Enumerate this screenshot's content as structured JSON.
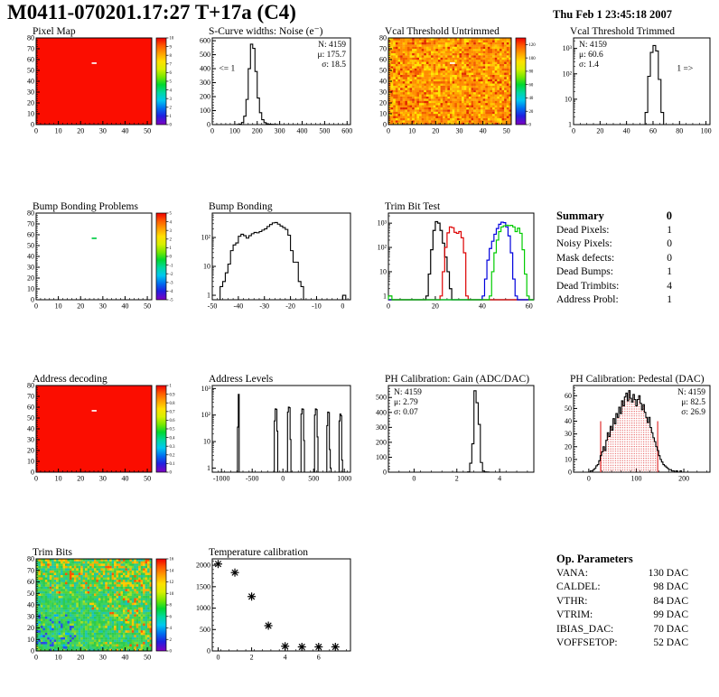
{
  "header": {
    "title": "M0411-070201.17:27 T+17a (C4)",
    "date": "Thu Feb  1 23:45:18 2007"
  },
  "summary": {
    "title": "Summary",
    "total": "0",
    "rows": [
      {
        "label": "Dead Pixels:",
        "value": "1"
      },
      {
        "label": "Noisy Pixels:",
        "value": "0"
      },
      {
        "label": "Mask defects:",
        "value": "0"
      },
      {
        "label": "Dead Bumps:",
        "value": "1"
      },
      {
        "label": "Dead Trimbits:",
        "value": "4"
      },
      {
        "label": "Address Probl:",
        "value": "1"
      }
    ]
  },
  "op_parameters": {
    "title": "Op. Parameters",
    "rows": [
      {
        "label": "VANA:",
        "value": "130 DAC"
      },
      {
        "label": "CALDEL:",
        "value": "98 DAC"
      },
      {
        "label": "VTHR:",
        "value": "84 DAC"
      },
      {
        "label": "VTRIM:",
        "value": "99 DAC"
      },
      {
        "label": "IBIAS_DAC:",
        "value": "70 DAC"
      },
      {
        "label": "VOFFSETOP:",
        "value": "52 DAC"
      }
    ]
  },
  "chart_data": [
    {
      "id": "pixel_map",
      "title": "Pixel Map",
      "type": "heatmap",
      "pattern": "uniform",
      "base_color": "#fb0d00",
      "xrange": [
        0,
        52
      ],
      "yrange": [
        0,
        80
      ],
      "xticks": [
        0,
        10,
        20,
        30,
        40,
        50
      ],
      "yticks": [
        0,
        10,
        20,
        30,
        40,
        50,
        60,
        70,
        80
      ],
      "xminor": 2,
      "yminor": 2,
      "defect": {
        "x": 25,
        "y": 56,
        "color": "#ffffff"
      },
      "colorbar": {
        "range": [
          0,
          10
        ],
        "labels": [
          "10",
          "9",
          "8",
          "7",
          "6",
          "5",
          "4",
          "3",
          "2",
          "1",
          "0"
        ]
      }
    },
    {
      "id": "scurve",
      "title": "S-Curve widths: Noise (e⁻)",
      "type": "hist",
      "color": "#000000",
      "xrange": [
        0,
        615
      ],
      "yrange": [
        0,
        620
      ],
      "xticks": [
        0,
        100,
        200,
        300,
        400,
        500,
        600
      ],
      "yticks": [
        0,
        100,
        200,
        300,
        400,
        500,
        600
      ],
      "xminor": 20,
      "yminor": 20,
      "segments": [
        {
          "x0": 110,
          "w": 10,
          "counts": [
            1,
            3,
            15,
            60,
            180,
            400,
            575,
            545,
            380,
            190,
            85,
            35,
            14,
            6,
            3,
            2,
            1,
            1
          ]
        }
      ],
      "stats": {
        "pos": "tr",
        "lines": [
          {
            "t": "N: 4159"
          },
          {
            "t": "μ: 175.7"
          },
          {
            "t": "σ: 18.5"
          }
        ]
      },
      "annotations": [
        {
          "text": "<= 1",
          "x": 30,
          "y": 385
        }
      ]
    },
    {
      "id": "vcal_untrimmed",
      "title": "Vcal Threshold Untrimmed",
      "type": "heatmap",
      "pattern": "vcal",
      "seed": 11,
      "xrange": [
        0,
        52
      ],
      "yrange": [
        0,
        80
      ],
      "xticks": [
        0,
        10,
        20,
        30,
        40,
        50
      ],
      "yticks": [
        0,
        10,
        20,
        30,
        40,
        50,
        60,
        70,
        80
      ],
      "xminor": 2,
      "yminor": 2,
      "defect": {
        "x": 26,
        "y": 56,
        "color": "#ffffff"
      },
      "colorbar": {
        "range": [
          0,
          130
        ],
        "labels": [
          "120",
          "100",
          "80",
          "60",
          "40",
          "20",
          "0"
        ]
      }
    },
    {
      "id": "vcal_trimmed",
      "title": "Vcal Threshold Trimmed",
      "type": "hist",
      "yscale": "log",
      "color": "#000000",
      "xrange": [
        0,
        103
      ],
      "yrange": [
        1,
        2600
      ],
      "xticks": [
        0,
        20,
        40,
        60,
        80,
        100
      ],
      "xminor": 5,
      "segments": [
        {
          "x0": 54,
          "w": 2,
          "counts": [
            3,
            80,
            700,
            1300,
            800,
            60,
            3
          ]
        }
      ],
      "stats": {
        "pos": "tl",
        "lines": [
          {
            "t": "N: 4159"
          },
          {
            "t": "μ: 60.6"
          },
          {
            "t": "σ: 1.4"
          }
        ]
      },
      "annotations": [
        {
          "text": "1 =>",
          "x": 78,
          "y": 130
        }
      ]
    },
    {
      "id": "bump_problems",
      "title": "Bump Bonding Problems",
      "type": "heatmap",
      "pattern": "empty",
      "xrange": [
        0,
        52
      ],
      "yrange": [
        0,
        80
      ],
      "xticks": [
        0,
        10,
        20,
        30,
        40,
        50
      ],
      "yticks": [
        0,
        10,
        20,
        30,
        40,
        50,
        60,
        70,
        80
      ],
      "xminor": 2,
      "yminor": 2,
      "defect": {
        "x": 25,
        "y": 56,
        "color": "#00cc44"
      },
      "colorbar": {
        "range": [
          -5,
          5
        ],
        "labels": [
          "5",
          "4",
          "3",
          "2",
          "1",
          "0",
          "-1",
          "-2",
          "-3",
          "-4",
          "-5"
        ]
      }
    },
    {
      "id": "bump_bonding",
      "title": "Bump Bonding",
      "type": "hist",
      "yscale": "log",
      "color": "#000000",
      "xrange": [
        -50,
        3
      ],
      "yrange": [
        0.7,
        700
      ],
      "xticks": [
        -50,
        -40,
        -30,
        -20,
        -10,
        0
      ],
      "xminor": 2,
      "segments": [
        {
          "x0": -47,
          "w": 1,
          "counts": [
            2,
            3,
            6,
            12,
            35,
            55,
            65,
            110,
            130,
            115,
            95,
            115,
            135,
            150,
            145,
            160,
            180,
            200,
            240,
            280,
            320,
            330,
            290,
            250,
            220,
            190,
            120,
            35,
            14,
            14,
            3,
            2
          ]
        },
        {
          "x0": 0,
          "w": 1.2,
          "counts": [
            1
          ]
        }
      ]
    },
    {
      "id": "trim_bit_test",
      "title": "Trim Bit Test",
      "type": "multihist",
      "yscale": "log",
      "xrange": [
        0,
        62
      ],
      "yrange": [
        0.7,
        2600
      ],
      "xticks": [
        0,
        20,
        40,
        60
      ],
      "xminor": 5,
      "series": [
        {
          "name": "trim-bit-hist-black",
          "color": "#000000",
          "segments": [
            {
              "x0": 16,
              "w": 1,
              "counts": [
                1,
                8,
                80,
                500,
                1150,
                1000,
                500,
                150,
                40,
                10,
                2
              ]
            }
          ]
        },
        {
          "name": "trim-bit-hist-red",
          "color": "#dd0000",
          "segments": [
            {
              "x0": 22,
              "w": 1,
              "counts": [
                1,
                10,
                100,
                400,
                700,
                650,
                420,
                380,
                450,
                250,
                60,
                1
              ]
            }
          ]
        },
        {
          "name": "trim-bit-hist-blue",
          "color": "#0000dd",
          "segments": [
            {
              "x0": 40,
              "w": 1,
              "counts": [
                1,
                5,
                30,
                90,
                180,
                350,
                600,
                900,
                1100,
                1050,
                700,
                300,
                60,
                5,
                1
              ]
            }
          ]
        },
        {
          "name": "trim-bit-hist-green",
          "color": "#00cc00",
          "segments": [
            {
              "x0": 0,
              "w": 1.5,
              "counts": [
                1
              ]
            },
            {
              "x0": 43,
              "w": 1,
              "counts": [
                1,
                10,
                60,
                200,
                450,
                700,
                780,
                820,
                790,
                810,
                700,
                450,
                620,
                380,
                80,
                8,
                1
              ]
            }
          ]
        }
      ]
    },
    {
      "id": "address_decoding",
      "title": "Address decoding",
      "type": "heatmap",
      "pattern": "uniform",
      "base_color": "#fb0d00",
      "xrange": [
        0,
        52
      ],
      "yrange": [
        0,
        80
      ],
      "xticks": [
        0,
        10,
        20,
        30,
        40,
        50
      ],
      "yticks": [
        0,
        10,
        20,
        30,
        40,
        50,
        60,
        70,
        80
      ],
      "xminor": 2,
      "yminor": 2,
      "defect": {
        "x": 25,
        "y": 56,
        "color": "#ffffff"
      },
      "colorbar": {
        "range": [
          0,
          1
        ],
        "labels": [
          "1",
          "0.9",
          "0.8",
          "0.7",
          "0.6",
          "0.5",
          "0.4",
          "0.3",
          "0.2",
          "0.1",
          "0"
        ]
      }
    },
    {
      "id": "address_levels",
      "title": "Address Levels",
      "type": "hist",
      "yscale": "log",
      "color": "#000000",
      "xrange": [
        -1150,
        1100
      ],
      "yrange": [
        0.7,
        1300
      ],
      "xticks": [
        -1000,
        -500,
        0,
        500,
        1000
      ],
      "xminor": 100,
      "segments": [
        {
          "x0": -740,
          "w": 14,
          "counts": [
            35,
            600
          ]
        },
        {
          "x0": -140,
          "w": 14,
          "counts": [
            60,
            170,
            165,
            25
          ]
        },
        {
          "x0": 75,
          "w": 14,
          "counts": [
            130,
            200,
            190,
            12
          ]
        },
        {
          "x0": 295,
          "w": 14,
          "counts": [
            110,
            170,
            165,
            11
          ]
        },
        {
          "x0": 515,
          "w": 14,
          "counts": [
            100,
            170,
            160,
            15
          ]
        },
        {
          "x0": 715,
          "w": 14,
          "counts": [
            40,
            130,
            125,
            5,
            1
          ]
        },
        {
          "x0": 915,
          "w": 14,
          "counts": [
            60,
            110,
            95,
            2
          ]
        }
      ]
    },
    {
      "id": "ph_gain",
      "title": "PH Calibration: Gain (ADC/DAC)",
      "type": "hist",
      "color": "#000000",
      "xrange": [
        -1.2,
        5.6
      ],
      "yrange": [
        0,
        580
      ],
      "xticks": [
        0,
        2,
        4
      ],
      "yticks": [
        0,
        100,
        200,
        300,
        400,
        500
      ],
      "xminor": 0.5,
      "yminor": 20,
      "segments": [
        {
          "x0": 2.5,
          "w": 0.1,
          "counts": [
            2,
            60,
            190,
            545,
            465,
            320,
            65,
            8,
            2,
            1
          ]
        }
      ],
      "stats": {
        "pos": "tl",
        "lines": [
          {
            "t": "N: 4159"
          },
          {
            "t": "μ: 2.79"
          },
          {
            "t": "σ: 0.07"
          }
        ]
      }
    },
    {
      "id": "ph_pedestal",
      "title": "PH Calibration: Pedestal (DAC)",
      "type": "hist",
      "color": "#000000",
      "xrange": [
        -32,
        255
      ],
      "yrange": [
        0,
        68
      ],
      "xticks": [
        0,
        100,
        200
      ],
      "yticks": [
        0,
        10,
        20,
        30,
        40,
        50,
        60
      ],
      "xminor": 20,
      "yminor": 2,
      "segments": [
        {
          "x0": 0,
          "w": 3,
          "counts": [
            0,
            1,
            1,
            2,
            3,
            5,
            6,
            9,
            13,
            16,
            20,
            17,
            25,
            31,
            28,
            36,
            33,
            42,
            38,
            46,
            43,
            51,
            46,
            56,
            52,
            59,
            62,
            56,
            64,
            58,
            55,
            61,
            57,
            52,
            57,
            60,
            54,
            49,
            53,
            47,
            43,
            39,
            43,
            35,
            31,
            27,
            24,
            20,
            17,
            13,
            10,
            8,
            6,
            5,
            4,
            3,
            2,
            2,
            1,
            1,
            0,
            1,
            0,
            0,
            1,
            0,
            0,
            0,
            0,
            0
          ]
        }
      ],
      "fill_region": {
        "from": 25,
        "to": 145,
        "line_top": 40,
        "color": "#e03030"
      },
      "stats": {
        "pos": "tr",
        "lines": [
          {
            "t": "N: 4159"
          },
          {
            "t": "μ: 82.5",
            "c": "#e03030"
          },
          {
            "t": "σ: 26.9",
            "c": "#e03030"
          }
        ]
      }
    },
    {
      "id": "trim_bits",
      "title": "Trim Bits",
      "type": "heatmap",
      "pattern": "trim",
      "seed": 23,
      "xrange": [
        0,
        52
      ],
      "yrange": [
        0,
        80
      ],
      "xticks": [
        0,
        10,
        20,
        30,
        40,
        50
      ],
      "yticks": [
        0,
        10,
        20,
        30,
        40,
        50,
        60,
        70,
        80
      ],
      "xminor": 2,
      "yminor": 2,
      "colorbar": {
        "range": [
          0,
          16
        ],
        "labels": [
          "16",
          "14",
          "12",
          "10",
          "8",
          "6",
          "4",
          "2",
          "0"
        ]
      }
    },
    {
      "id": "temp_cal",
      "title": "Temperature calibration",
      "type": "scatter",
      "xrange": [
        -0.35,
        7.9
      ],
      "yrange": [
        0,
        2150
      ],
      "xticks": [
        0,
        2,
        4,
        6
      ],
      "yticks": [
        0,
        500,
        1000,
        1500,
        2000
      ],
      "xminor": 0.5,
      "yminor": 100,
      "points": [
        [
          0,
          2030
        ],
        [
          1,
          1830
        ],
        [
          2,
          1270
        ],
        [
          3,
          590
        ],
        [
          4,
          110
        ],
        [
          5,
          95
        ],
        [
          6,
          95
        ],
        [
          7,
          95
        ]
      ]
    }
  ]
}
